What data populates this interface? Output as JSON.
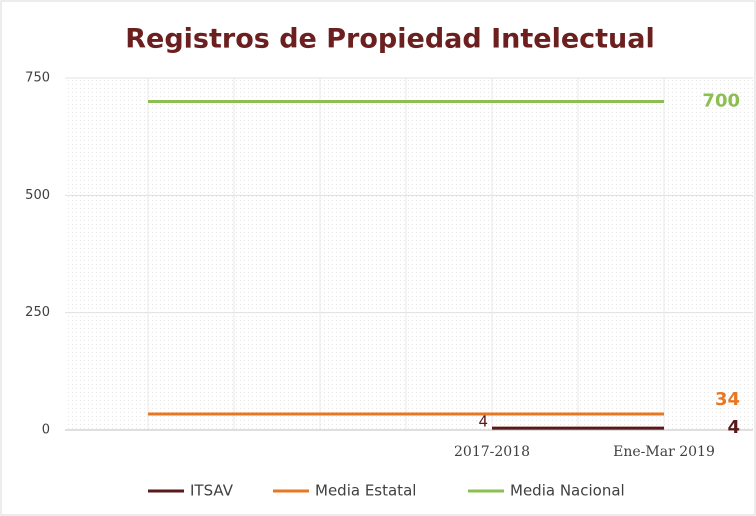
{
  "chart_data": {
    "type": "line",
    "title": "Registros de Propiedad Intelectual",
    "categories": [
      null,
      null,
      null,
      null,
      "2017-2018",
      null,
      "Ene-Mar 2019"
    ],
    "series": [
      {
        "name": "ITSAV",
        "color": "#5a1a1a",
        "values": [
          null,
          null,
          null,
          null,
          4,
          4,
          4
        ]
      },
      {
        "name": "Media Estatal",
        "color": "#e87722",
        "values": [
          34,
          34,
          34,
          34,
          34,
          34,
          34
        ]
      },
      {
        "name": "Media Nacional",
        "color": "#8cbf4f",
        "values": [
          700,
          700,
          700,
          700,
          700,
          700,
          700
        ]
      }
    ],
    "ylim": [
      0,
      750
    ],
    "yticks": [
      0,
      250,
      500,
      750
    ],
    "grid": true,
    "legend": "bottom"
  }
}
